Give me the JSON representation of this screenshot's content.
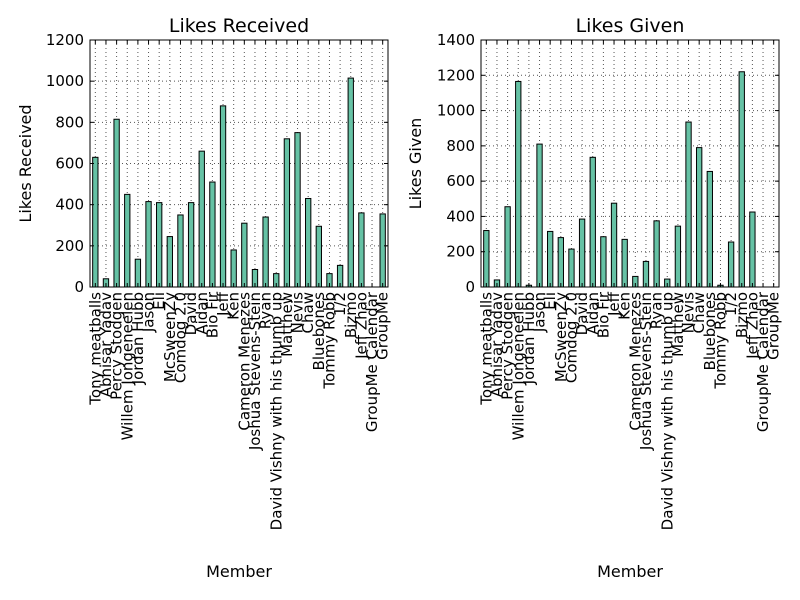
{
  "style": {
    "bar_color": "#66c2a5",
    "bar_edge": "#000000",
    "grid_color": "#555555"
  },
  "chart_data": [
    {
      "type": "bar",
      "title": "Likes Received",
      "xlabel": "Member",
      "ylabel": "Likes Received",
      "ylim": [
        0,
        1200
      ],
      "yticks": [
        0,
        200,
        400,
        600,
        800,
        1000,
        1200
      ],
      "grid": true,
      "categories": [
        "Tony meatballs",
        "Abhisar Yadav",
        "Percy Stodgen",
        "Willem Jongeneelen",
        "Jordan Hubb",
        "Jason",
        "Eli",
        "McSweenZy",
        "Comdog 2.0",
        "David",
        "Aidan",
        "Bio Fir",
        "Jeff",
        "Ken",
        "Cameron Menezes",
        "Joshua Stevens-Stein",
        "Ryan",
        "David Vishny with his thumb up",
        "Matthew",
        "Nevis",
        "Chaw",
        "Bluebones",
        "Tommy Robb",
        "1/2",
        "Bizmo",
        "Jeff Zhao",
        "GroupMe Calendar",
        "GroupMe"
      ],
      "values": [
        630,
        40,
        815,
        450,
        135,
        415,
        410,
        245,
        350,
        410,
        660,
        510,
        880,
        180,
        310,
        85,
        340,
        65,
        720,
        750,
        430,
        295,
        65,
        105,
        1015,
        360,
        0,
        355
      ]
    },
    {
      "type": "bar",
      "title": "Likes Given",
      "xlabel": "Member",
      "ylabel": "Likes Given",
      "ylim": [
        0,
        1400
      ],
      "yticks": [
        0,
        200,
        400,
        600,
        800,
        1000,
        1200,
        1400
      ],
      "grid": true,
      "categories": [
        "Tony meatballs",
        "Abhisar Yadav",
        "Percy Stodgen",
        "Willem Jongeneelen",
        "Jordan Hubb",
        "Jason",
        "Eli",
        "McSweenZy",
        "Comdog 2.0",
        "David",
        "Aidan",
        "Bio Fir",
        "Jeff",
        "Ken",
        "Cameron Menezes",
        "Joshua Stevens-Stein",
        "Ryan",
        "David Vishny with his thumb up",
        "Matthew",
        "Nevis",
        "Chaw",
        "Bluebones",
        "Tommy Robb",
        "1/2",
        "Bizmo",
        "Jeff Zhao",
        "GroupMe Calendar",
        "GroupMe"
      ],
      "values": [
        320,
        40,
        455,
        1165,
        10,
        810,
        315,
        280,
        215,
        385,
        735,
        285,
        475,
        270,
        60,
        145,
        375,
        45,
        345,
        935,
        790,
        655,
        10,
        255,
        1220,
        425,
        0,
        0
      ]
    }
  ]
}
